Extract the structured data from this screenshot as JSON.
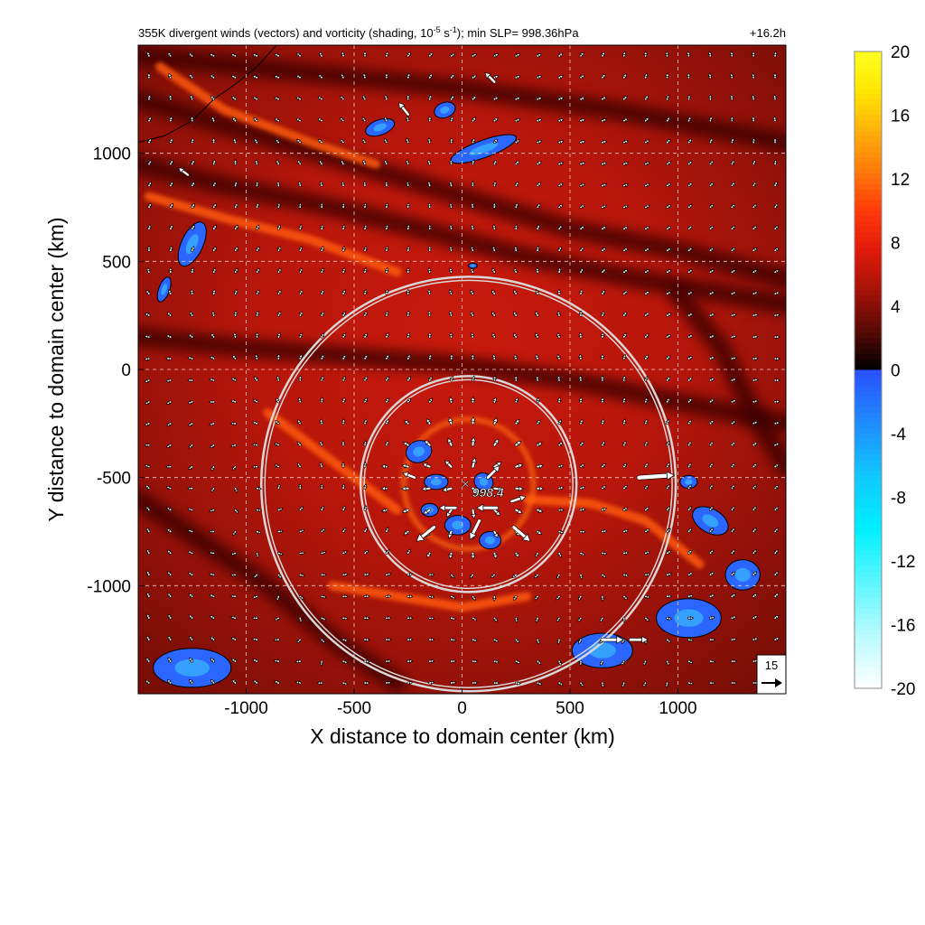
{
  "chart_data": {
    "type": "heatmap",
    "title": "355K divergent winds (vectors) and vorticity (shading, 10",
    "title_exp": "-5",
    "title_mid": " s",
    "title_exp2": "-1",
    "title_tail": "); min SLP= 998.36hPa",
    "time_label": "+16.2h",
    "xlabel": "X distance to domain center (km)",
    "ylabel": "Y distance to domain center (km)",
    "xlim": [
      -1500,
      1500
    ],
    "ylim": [
      -1500,
      1500
    ],
    "x_ticks": [
      -1000,
      -500,
      0,
      500,
      1000
    ],
    "y_ticks": [
      1000,
      500,
      0,
      -500,
      -1000
    ],
    "x_tick_labels": [
      "-1000",
      "-500",
      "0",
      "500",
      "1000"
    ],
    "y_tick_labels": [
      "1000",
      "500",
      "0",
      "-500",
      "-1000"
    ],
    "grid": true,
    "colorbar": {
      "range": [
        -20,
        20
      ],
      "ticks": [
        20,
        16,
        12,
        8,
        4,
        0,
        -4,
        -8,
        -12,
        -16,
        -20
      ],
      "tick_labels": [
        "20",
        "16",
        "12",
        "8",
        "4",
        "0",
        "-4",
        "-8",
        "-12",
        "-16",
        "-20"
      ],
      "colors_positive": [
        "#000000",
        "#5a0a05",
        "#a51208",
        "#e01a0a",
        "#ff3a0a",
        "#ff7a0a",
        "#ffb00a",
        "#ffe600",
        "#ffff22"
      ],
      "colors_negative": [
        "#2a50ff",
        "#1f8cff",
        "#10c8ff",
        "#00f0ff",
        "#5cf6ff",
        "#b8fbff",
        "#ffffff"
      ]
    },
    "storm_center": {
      "x": 30,
      "y": -530
    },
    "min_slp_label": "998.4",
    "range_circles_km": [
      500,
      960
    ],
    "reference_vector": {
      "label": "15",
      "magnitude": 15
    },
    "vector_grid_spacing_km": 100,
    "blue_regions": [
      {
        "x": 100,
        "y": 1020,
        "rx": 160,
        "ry": 40,
        "rot": -20
      },
      {
        "x": -380,
        "y": 1120,
        "rx": 70,
        "ry": 35,
        "rot": -20
      },
      {
        "x": -80,
        "y": 1200,
        "rx": 50,
        "ry": 35,
        "rot": -20
      },
      {
        "x": -1250,
        "y": 580,
        "rx": 50,
        "ry": 110,
        "rot": 25
      },
      {
        "x": -1380,
        "y": 370,
        "rx": 25,
        "ry": 60,
        "rot": 20
      },
      {
        "x": 50,
        "y": 480,
        "rx": 20,
        "ry": 12,
        "rot": 0
      },
      {
        "x": -200,
        "y": -380,
        "rx": 60,
        "ry": 50,
        "rot": -20
      },
      {
        "x": -120,
        "y": -520,
        "rx": 55,
        "ry": 35,
        "rot": 0
      },
      {
        "x": 100,
        "y": -520,
        "rx": 45,
        "ry": 40,
        "rot": 30
      },
      {
        "x": -20,
        "y": -720,
        "rx": 60,
        "ry": 45,
        "rot": 0
      },
      {
        "x": 130,
        "y": -790,
        "rx": 50,
        "ry": 40,
        "rot": 0
      },
      {
        "x": -150,
        "y": -650,
        "rx": 40,
        "ry": 30,
        "rot": 0
      },
      {
        "x": 1150,
        "y": -700,
        "rx": 90,
        "ry": 55,
        "rot": 30
      },
      {
        "x": 1050,
        "y": -1150,
        "rx": 150,
        "ry": 90,
        "rot": 0
      },
      {
        "x": 650,
        "y": -1300,
        "rx": 140,
        "ry": 80,
        "rot": 0
      },
      {
        "x": 1300,
        "y": -950,
        "rx": 80,
        "ry": 70,
        "rot": 0
      },
      {
        "x": -1250,
        "y": -1380,
        "rx": 180,
        "ry": 90,
        "rot": 0
      },
      {
        "x": 1050,
        "y": -520,
        "rx": 40,
        "ry": 30,
        "rot": 0
      }
    ],
    "bright_bands": [
      {
        "points": [
          [
            -1400,
            1400
          ],
          [
            -1100,
            1200
          ],
          [
            -700,
            1050
          ],
          [
            -400,
            950
          ]
        ]
      },
      {
        "points": [
          [
            -1450,
            800
          ],
          [
            -1100,
            700
          ],
          [
            -700,
            600
          ],
          [
            -300,
            450
          ]
        ]
      },
      {
        "points": [
          [
            -900,
            -200
          ],
          [
            -700,
            -350
          ],
          [
            -500,
            -500
          ],
          [
            -300,
            -650
          ]
        ]
      },
      {
        "points": [
          [
            -600,
            -1000
          ],
          [
            -300,
            -1050
          ],
          [
            0,
            -1100
          ],
          [
            300,
            -1050
          ]
        ]
      },
      {
        "points": [
          [
            300,
            -600
          ],
          [
            600,
            -620
          ],
          [
            850,
            -700
          ],
          [
            1100,
            -900
          ]
        ]
      }
    ],
    "strong_vectors": [
      {
        "x": 820,
        "y": -500,
        "u": 30,
        "v": 2
      },
      {
        "x": -130,
        "y": -730,
        "u": -15,
        "v": -12
      },
      {
        "x": 240,
        "y": -730,
        "u": 14,
        "v": -12
      },
      {
        "x": 160,
        "y": -640,
        "u": -17,
        "v": 0
      },
      {
        "x": 230,
        "y": -610,
        "u": 12,
        "v": 4
      },
      {
        "x": 120,
        "y": -500,
        "u": 10,
        "v": 10
      },
      {
        "x": 80,
        "y": -700,
        "u": -8,
        "v": -16
      },
      {
        "x": -30,
        "y": -640,
        "u": -14,
        "v": 0
      },
      {
        "x": -220,
        "y": -500,
        "u": -10,
        "v": 4
      },
      {
        "x": 650,
        "y": -1250,
        "u": 18,
        "v": 0
      },
      {
        "x": 780,
        "y": -1250,
        "u": 15,
        "v": 0
      },
      {
        "x": -250,
        "y": 1180,
        "u": -8,
        "v": 10
      },
      {
        "x": -1270,
        "y": 900,
        "u": -8,
        "v": 6
      },
      {
        "x": 150,
        "y": 1330,
        "u": -8,
        "v": 8
      }
    ]
  }
}
